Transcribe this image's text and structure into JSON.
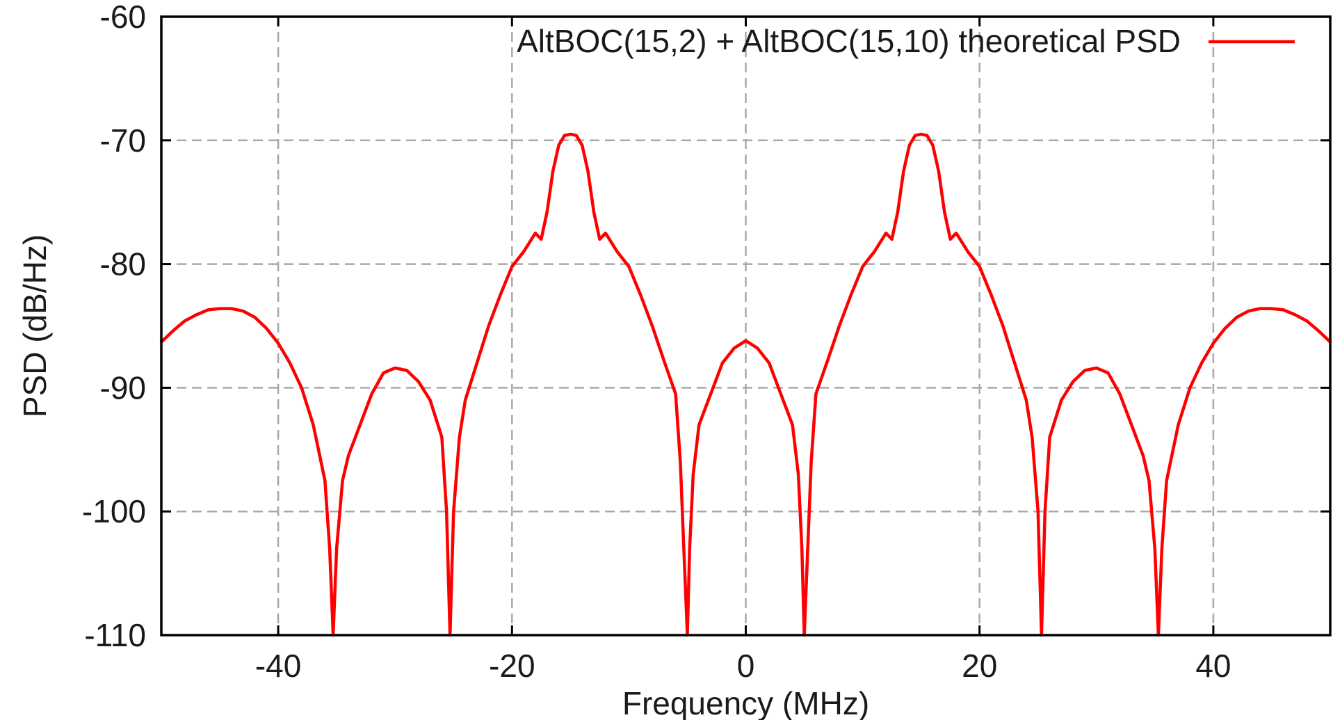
{
  "chart_data": {
    "type": "line",
    "xlabel": "Frequency (MHz)",
    "ylabel": "PSD (dB/Hz)",
    "xlim": [
      -50,
      50
    ],
    "ylim": [
      -110,
      -60
    ],
    "xticks": [
      -40,
      -20,
      0,
      20,
      40
    ],
    "yticks": [
      -60,
      -70,
      -80,
      -90,
      -100,
      -110
    ],
    "grid": true,
    "legend_position": "top-right",
    "series": [
      {
        "name": "AltBOC(15,2) + AltBOC(15,10) theoretical PSD",
        "color": "#ff0000",
        "x": [
          0,
          1,
          2,
          3,
          4,
          4.5,
          4.8,
          5,
          5.3,
          5.6,
          6,
          7,
          8,
          9,
          10,
          11,
          12,
          12.5,
          13,
          13.5,
          14,
          14.5,
          15,
          15.5,
          16,
          16.5,
          17,
          17.5,
          18,
          19,
          20,
          21,
          22,
          23,
          24,
          24.5,
          25,
          25.3,
          25.6,
          26,
          27,
          28,
          29,
          30,
          31,
          32,
          33,
          34,
          34.5,
          35,
          35.3,
          35.6,
          36,
          37,
          38,
          39,
          40,
          41,
          42,
          43,
          44,
          45,
          46,
          47,
          48,
          49,
          50
        ],
        "y": [
          -86.2,
          -86.8,
          -88,
          -90.5,
          -93,
          -97,
          -103,
          -110,
          -103,
          -96,
          -90.5,
          -87.8,
          -85,
          -82.5,
          -80.2,
          -79,
          -77.5,
          -78,
          -75.8,
          -72.5,
          -70.4,
          -69.6,
          -69.5,
          -69.6,
          -70.4,
          -72.5,
          -75.8,
          -78,
          -77.5,
          -79,
          -80.2,
          -82.5,
          -85,
          -88,
          -91,
          -94,
          -100,
          -110,
          -100,
          -94,
          -91,
          -89.5,
          -88.6,
          -88.4,
          -88.8,
          -90.5,
          -93,
          -95.5,
          -97.5,
          -103,
          -110,
          -103,
          -97.5,
          -93,
          -90,
          -88,
          -86.4,
          -85.2,
          -84.3,
          -83.8,
          -83.6,
          -83.6,
          -83.7,
          -84.1,
          -84.6,
          -85.4,
          -86.3
        ]
      }
    ]
  }
}
